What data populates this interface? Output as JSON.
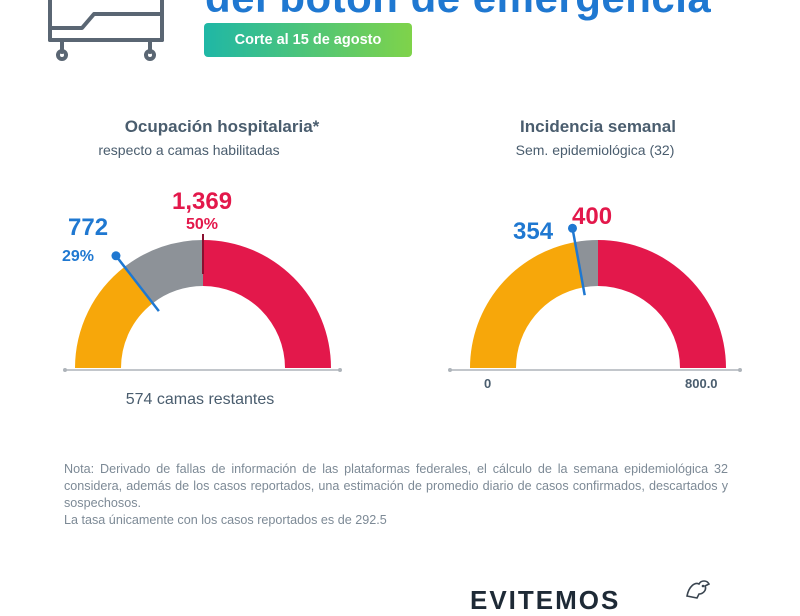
{
  "header": {
    "title": "del botón de emergencia",
    "date_badge": "Corte al 15 de agosto"
  },
  "hospital": {
    "title": "Ocupación hospitalaria*",
    "subtitle": "respecto a camas habilitadas",
    "occupied_value": "772",
    "occupied_pct": "29%",
    "total_value": "1,369",
    "total_pct": "50%",
    "remaining": "574 camas restantes"
  },
  "incidence": {
    "title": "Incidencia semanal",
    "subtitle": "Sem. epidemiológica (32)",
    "value": "354",
    "threshold": "400",
    "axis_min": "0",
    "axis_max": "800.0"
  },
  "note": {
    "text": "Nota: Derivado de fallas de información de las plataformas federales, el cálculo de la semana epidemiológica 32 considera, además de los casos reportados, una estimación de promedio diario de casos confirmados, descartados y sospechosos.",
    "last_line": "La tasa únicamente con los casos reportados es de 292.5"
  },
  "footer": {
    "brand": "EVITEMOS"
  },
  "colors": {
    "blue": "#1f78d1",
    "red": "#e3184b",
    "orange": "#f7a70a",
    "gray": "#8d9298",
    "text": "#4a5d6e"
  },
  "chart_data": [
    {
      "type": "gauge",
      "title": "Ocupación hospitalaria*",
      "subtitle": "respecto a camas habilitadas",
      "range": [
        0,
        100
      ],
      "segments": [
        {
          "label": "772",
          "percent": 29,
          "color": "#f7a70a"
        },
        {
          "label": "",
          "percent": 21,
          "color": "#8d9298"
        },
        {
          "label": "1,369",
          "percent": 50,
          "color": "#e3184b"
        }
      ],
      "needle_percent": 29,
      "annotation": "574 camas restantes"
    },
    {
      "type": "gauge",
      "title": "Incidencia semanal",
      "subtitle": "Sem. epidemiológica (32)",
      "range": [
        0,
        800
      ],
      "value": 354,
      "threshold": 400,
      "axis_labels": [
        "0",
        "800.0"
      ]
    }
  ]
}
